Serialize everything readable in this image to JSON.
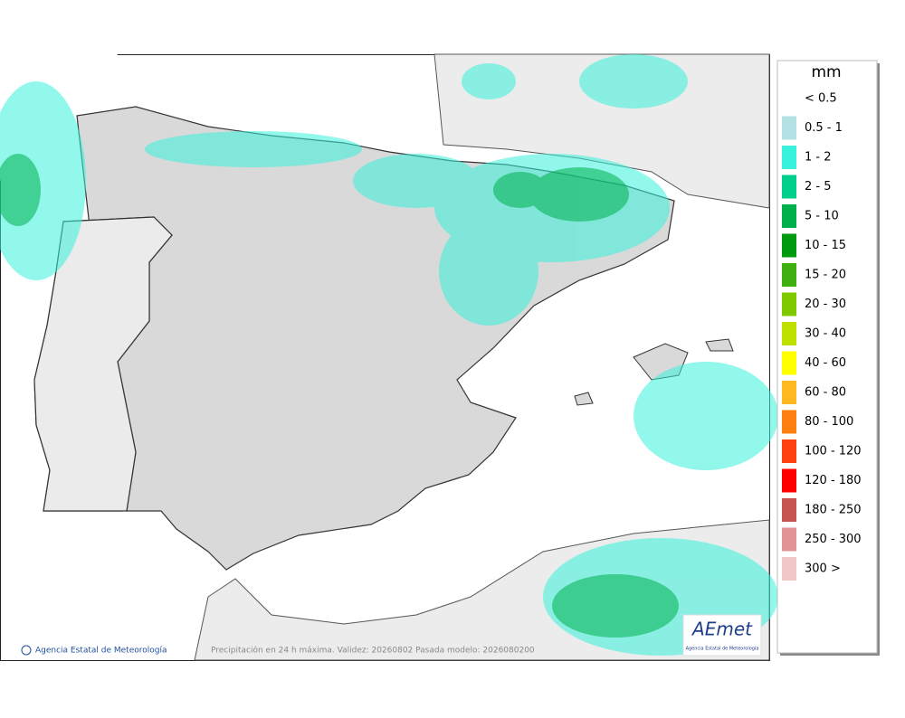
{
  "legend": {
    "title": "mm",
    "items": [
      {
        "label": "< 0.5",
        "color": "#ffffff"
      },
      {
        "label": "0.5 - 1",
        "color": "#b4e2e4"
      },
      {
        "label": "1 - 2",
        "color": "#38f2dc"
      },
      {
        "label": "2 - 5",
        "color": "#00cf8c"
      },
      {
        "label": "5 - 10",
        "color": "#00b04c"
      },
      {
        "label": "10 - 15",
        "color": "#009a10"
      },
      {
        "label": "15 - 20",
        "color": "#40b010"
      },
      {
        "label": "20 - 30",
        "color": "#80c800"
      },
      {
        "label": "30 - 40",
        "color": "#c0e000"
      },
      {
        "label": "40 - 60",
        "color": "#ffff00"
      },
      {
        "label": "60 - 80",
        "color": "#ffb820"
      },
      {
        "label": "80 - 100",
        "color": "#ff8010"
      },
      {
        "label": "100 - 120",
        "color": "#ff4010"
      },
      {
        "label": "120 - 180",
        "color": "#ff0000"
      },
      {
        "label": "180 - 250",
        "color": "#c85454"
      },
      {
        "label": "250 - 300",
        "color": "#e09494"
      },
      {
        "label": "300 >",
        "color": "#f0c8c8"
      }
    ]
  },
  "footer": {
    "credit": "Agencia Estatal de Meteorología",
    "caption": "Precipitación en 24 h máxima. Validez: 20260802 Pasada modelo: 2026080200"
  },
  "logo": {
    "mark": "AEmet",
    "subtitle": "Agencia Estatal de Meteorología"
  }
}
